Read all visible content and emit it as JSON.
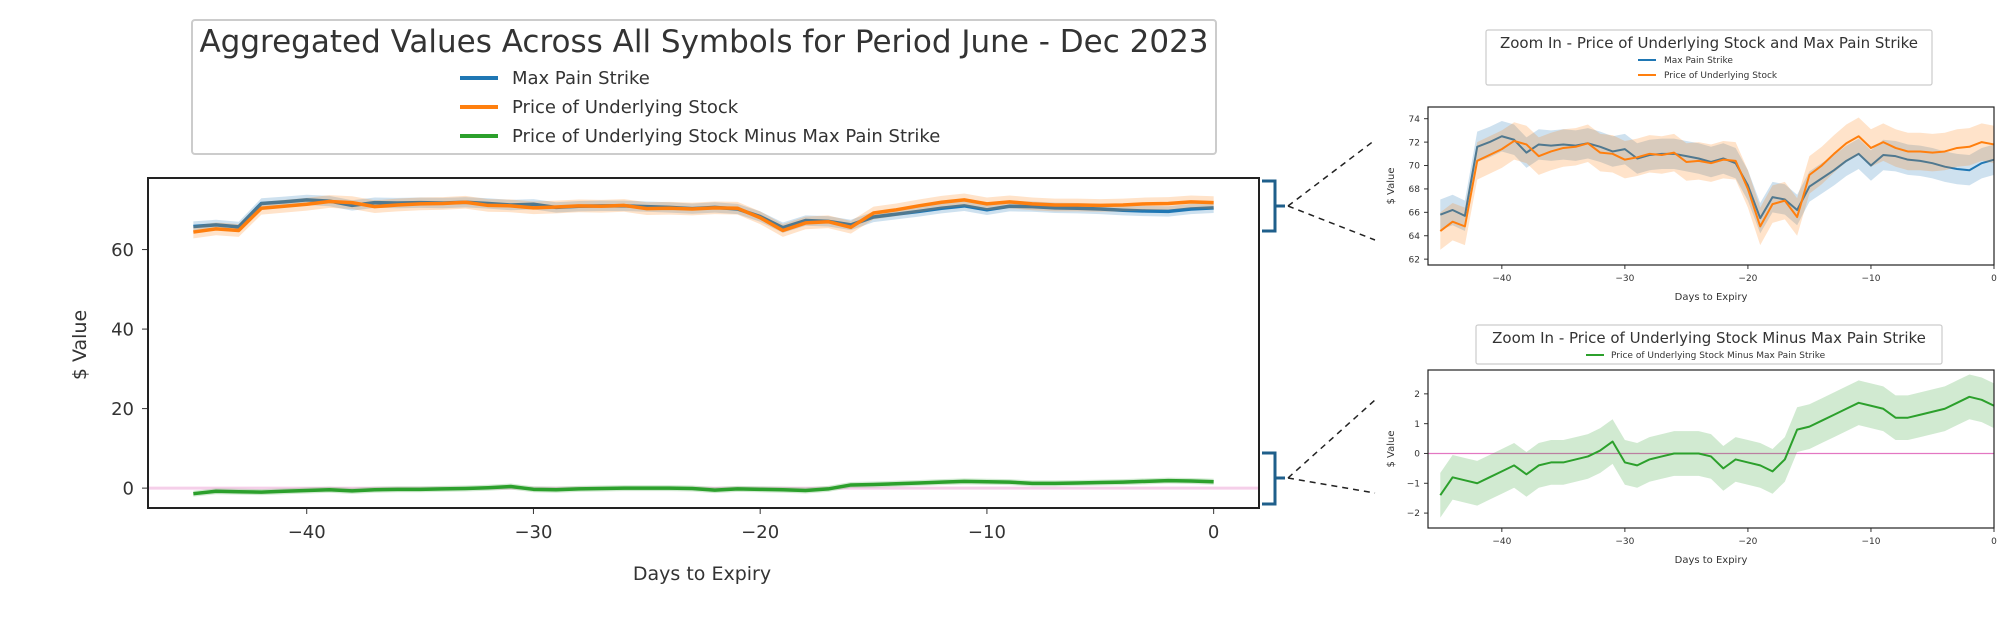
{
  "chart_data": [
    {
      "type": "line",
      "title": "Aggregated Values Across All Symbols for Period June - Dec 2023",
      "xlabel": "Days to Expiry",
      "ylabel": "$ Value",
      "xlim": [
        -47,
        2
      ],
      "ylim": [
        -5,
        78
      ],
      "xticks": [
        -40,
        -30,
        -20,
        -10,
        0
      ],
      "yticks": [
        0,
        20,
        40,
        60
      ],
      "reference_line": {
        "y": 0,
        "color": "#e377c2"
      },
      "legend": {
        "position": "top",
        "entries": [
          "Max Pain Strike",
          "Price of Underlying Stock",
          "Price of Underlying Stock Minus Max Pain Strike"
        ]
      },
      "x": [
        -45,
        -44,
        -43,
        -42,
        -41,
        -40,
        -39,
        -38,
        -37,
        -36,
        -35,
        -34,
        -33,
        -32,
        -31,
        -30,
        -29,
        -28,
        -27,
        -26,
        -25,
        -24,
        -23,
        -22,
        -21,
        -20,
        -19,
        -18,
        -17,
        -16,
        -15,
        -14,
        -13,
        -12,
        -11,
        -10,
        -9,
        -8,
        -7,
        -6,
        -5,
        -4,
        -3,
        -2,
        -1,
        0
      ],
      "series": [
        {
          "name": "Max Pain Strike",
          "color": "#1f77b4",
          "values": [
            65.8,
            66.2,
            65.7,
            71.6,
            72.0,
            72.5,
            72.2,
            71.1,
            71.8,
            71.7,
            71.8,
            71.7,
            71.9,
            71.6,
            71.2,
            71.4,
            70.6,
            70.9,
            71.0,
            71.0,
            70.8,
            70.6,
            70.3,
            70.6,
            70.2,
            68.3,
            65.5,
            67.3,
            67.1,
            66.2,
            68.2,
            68.9,
            69.6,
            70.4,
            71.0,
            70.0,
            70.9,
            70.8,
            70.5,
            70.4,
            70.2,
            69.9,
            69.7,
            69.6,
            70.2,
            70.5
          ]
        },
        {
          "name": "Price of Underlying Stock",
          "color": "#ff7f0e",
          "values": [
            64.4,
            65.2,
            64.8,
            70.4,
            70.9,
            71.4,
            72.1,
            71.8,
            70.8,
            71.2,
            71.5,
            71.6,
            71.9,
            71.1,
            71.0,
            70.5,
            70.7,
            71.0,
            70.9,
            71.1,
            70.3,
            70.4,
            70.2,
            70.5,
            70.4,
            68.0,
            64.8,
            66.7,
            67.0,
            65.6,
            69.2,
            70.0,
            71.0,
            71.9,
            72.5,
            71.5,
            72.0,
            71.5,
            71.2,
            71.2,
            71.1,
            71.2,
            71.5,
            71.6,
            72.0,
            71.8
          ]
        },
        {
          "name": "Price of Underlying Stock Minus Max Pain Strike",
          "color": "#2ca02c",
          "values": [
            -1.4,
            -0.8,
            -0.9,
            -1.0,
            -0.8,
            -0.6,
            -0.4,
            -0.7,
            -0.4,
            -0.3,
            -0.3,
            -0.2,
            -0.1,
            0.1,
            0.4,
            -0.3,
            -0.4,
            -0.2,
            -0.1,
            0.0,
            0.0,
            0.0,
            -0.1,
            -0.5,
            -0.2,
            -0.3,
            -0.4,
            -0.6,
            -0.2,
            0.8,
            0.9,
            1.1,
            1.3,
            1.5,
            1.7,
            1.6,
            1.5,
            1.2,
            1.2,
            1.3,
            1.4,
            1.5,
            1.7,
            1.9,
            1.8,
            1.6
          ]
        }
      ]
    },
    {
      "type": "line",
      "title": "Zoom In - Price of Underlying Stock and Max Pain Strike",
      "xlabel": "Days to Expiry",
      "ylabel": "$ Value",
      "xlim": [
        -46,
        0
      ],
      "ylim": [
        61.5,
        75
      ],
      "xticks": [
        -40,
        -30,
        -20,
        -10,
        0
      ],
      "yticks": [
        62,
        64,
        66,
        68,
        70,
        72,
        74
      ],
      "legend": {
        "position": "top",
        "entries": [
          "Max Pain Strike",
          "Price of Underlying Stock"
        ]
      },
      "series_ref": [
        "Max Pain Strike",
        "Price of Underlying Stock"
      ]
    },
    {
      "type": "line",
      "title": "Zoom In - Price of Underlying Stock Minus Max Pain Strike",
      "xlabel": "Days to Expiry",
      "ylabel": "$ Value",
      "xlim": [
        -46,
        0
      ],
      "ylim": [
        -2.5,
        2.8
      ],
      "xticks": [
        -40,
        -30,
        -20,
        -10,
        0
      ],
      "yticks": [
        -2,
        -1,
        0,
        1,
        2
      ],
      "reference_line": {
        "y": 0,
        "color": "#e377c2"
      },
      "legend": {
        "position": "top",
        "entries": [
          "Price of Underlying Stock Minus Max Pain Strike"
        ]
      },
      "series_ref": [
        "Price of Underlying Stock Minus Max Pain Strike"
      ]
    }
  ]
}
